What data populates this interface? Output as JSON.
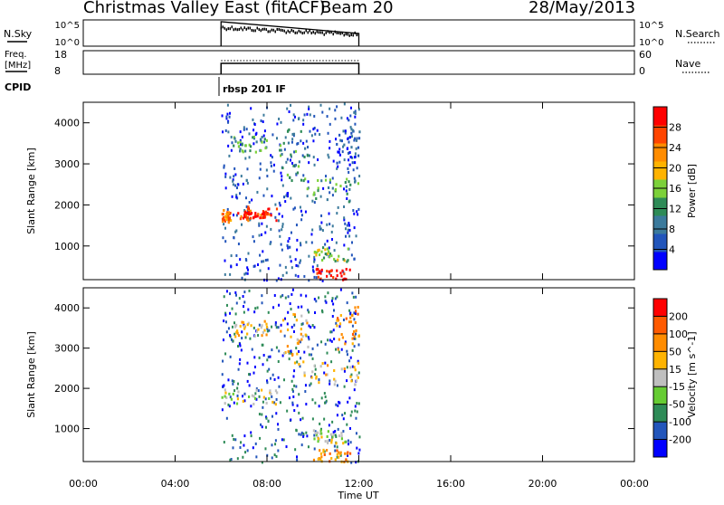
{
  "header": {
    "title": "Christmas Valley East (fitACF)",
    "beam": "Beam 20",
    "date": "28/May/2013"
  },
  "top_panels": {
    "nsky_label": "N.Sky",
    "nsky_ticks": [
      "10^5",
      "10^0"
    ],
    "nsky_right_ticks": [
      "10^5",
      "10^0"
    ],
    "nsearch_label": "N.Search",
    "freq_label_1": "Freq.",
    "freq_label_2": "[MHz]",
    "freq_ticks": [
      "18",
      "8"
    ],
    "nave_ticks": [
      "60",
      "0"
    ],
    "nave_label": "Nave",
    "cpid_label": "CPID",
    "cpid_value": "rbsp 201 IF"
  },
  "colors": {
    "power": [
      "#0000ff",
      "#2255bb",
      "#3b7a9c",
      "#2e8b57",
      "#7cd13a",
      "#ffb300",
      "#ff8c00",
      "#ff4500",
      "#ff0000"
    ],
    "velocity": [
      "#0000ff",
      "#2255bb",
      "#2e8b57",
      "#66cc33",
      "#bfbfbf",
      "#ffb300",
      "#ff8c00",
      "#ff5a00",
      "#ff0000"
    ]
  },
  "chart_data": [
    {
      "type": "heatmap",
      "name": "power",
      "xlabel": "Time UT",
      "ylabel": "Slant Range [km]",
      "xlim": [
        0,
        24
      ],
      "ylim": [
        180,
        4500
      ],
      "x_ticks": [
        "00:00",
        "04:00",
        "08:00",
        "12:00",
        "16:00",
        "20:00",
        "00:00"
      ],
      "y_ticks": [
        1000,
        2000,
        3000,
        4000
      ],
      "colorbar_label": "Power [dB]",
      "colorbar_ticks": [
        "28",
        "24",
        "20",
        "16",
        "12",
        "8",
        "4"
      ],
      "data_extent_hours": [
        6.0,
        12.0
      ],
      "structures": [
        {
          "t0": 6.0,
          "t1": 6.4,
          "r0": 1600,
          "r1": 1900,
          "level": 6
        },
        {
          "t0": 6.5,
          "t1": 8.4,
          "r0": 1650,
          "r1": 2000,
          "level": 7
        },
        {
          "t0": 7.0,
          "t1": 8.0,
          "r0": 1700,
          "r1": 1850,
          "level": 8
        },
        {
          "t0": 6.5,
          "t1": 8.0,
          "r0": 3300,
          "r1": 3700,
          "level": 3
        },
        {
          "t0": 8.5,
          "t1": 9.8,
          "r0": 2600,
          "r1": 3900,
          "level": 3
        },
        {
          "t0": 9.5,
          "t1": 12.0,
          "r0": 2100,
          "r1": 2700,
          "level": 3
        },
        {
          "t0": 10.0,
          "t1": 11.5,
          "r0": 650,
          "r1": 1000,
          "level": 4
        },
        {
          "t0": 10.0,
          "t1": 11.6,
          "r0": 200,
          "r1": 500,
          "level": 8
        },
        {
          "t0": 11.0,
          "t1": 12.0,
          "r0": 3000,
          "r1": 4100,
          "level": 1
        }
      ]
    },
    {
      "type": "heatmap",
      "name": "velocity",
      "xlabel": "Time UT",
      "ylabel": "Slant Range [km]",
      "xlim": [
        0,
        24
      ],
      "ylim": [
        180,
        4500
      ],
      "x_ticks": [
        "00:00",
        "04:00",
        "08:00",
        "12:00",
        "16:00",
        "20:00",
        "00:00"
      ],
      "y_ticks": [
        1000,
        2000,
        3000,
        4000
      ],
      "colorbar_label": "Velocity [m s^-1]",
      "colorbar_ticks": [
        "200",
        "100",
        "50",
        "15",
        "-15",
        "-50",
        "-100",
        "-200"
      ],
      "data_extent_hours": [
        6.0,
        12.0
      ],
      "structures": [
        {
          "t0": 6.0,
          "t1": 8.4,
          "r0": 1600,
          "r1": 2000,
          "level": 4
        },
        {
          "t0": 6.5,
          "t1": 8.0,
          "r0": 3300,
          "r1": 3700,
          "level": 5
        },
        {
          "t0": 8.5,
          "t1": 9.8,
          "r0": 2600,
          "r1": 3900,
          "level": 5
        },
        {
          "t0": 9.5,
          "t1": 12.0,
          "r0": 2100,
          "r1": 2700,
          "level": 5
        },
        {
          "t0": 10.0,
          "t1": 11.5,
          "r0": 650,
          "r1": 1000,
          "level": 4
        },
        {
          "t0": 10.0,
          "t1": 11.6,
          "r0": 200,
          "r1": 500,
          "level": 6
        },
        {
          "t0": 11.0,
          "t1": 12.0,
          "r0": 3000,
          "r1": 4100,
          "level": 6
        }
      ]
    }
  ]
}
